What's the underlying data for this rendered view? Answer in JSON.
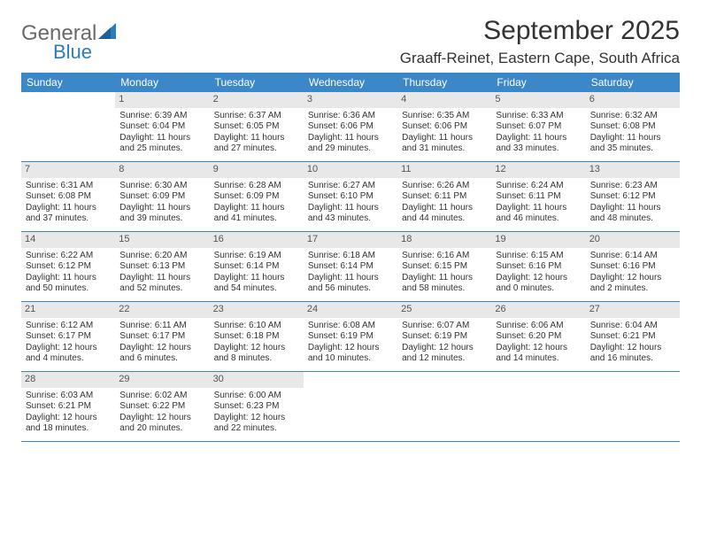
{
  "brand": {
    "word1": "General",
    "word2": "Blue",
    "text_color": "#6a6a6a",
    "accent_color": "#2b7bbf"
  },
  "header": {
    "title": "September 2025",
    "location": "Graaff-Reinet, Eastern Cape, South Africa"
  },
  "theme": {
    "header_row_bg": "#3b87c8",
    "header_row_text": "#ffffff",
    "daynum_bg": "#e8e8e8",
    "daynum_text": "#555555",
    "divider_color": "#3b87c8",
    "body_text": "#333333"
  },
  "day_headers": [
    "Sunday",
    "Monday",
    "Tuesday",
    "Wednesday",
    "Thursday",
    "Friday",
    "Saturday"
  ],
  "weeks": [
    [
      {
        "n": "",
        "sunrise": "",
        "sunset": "",
        "day1": "",
        "day2": ""
      },
      {
        "n": "1",
        "sunrise": "Sunrise: 6:39 AM",
        "sunset": "Sunset: 6:04 PM",
        "day1": "Daylight: 11 hours",
        "day2": "and 25 minutes."
      },
      {
        "n": "2",
        "sunrise": "Sunrise: 6:37 AM",
        "sunset": "Sunset: 6:05 PM",
        "day1": "Daylight: 11 hours",
        "day2": "and 27 minutes."
      },
      {
        "n": "3",
        "sunrise": "Sunrise: 6:36 AM",
        "sunset": "Sunset: 6:06 PM",
        "day1": "Daylight: 11 hours",
        "day2": "and 29 minutes."
      },
      {
        "n": "4",
        "sunrise": "Sunrise: 6:35 AM",
        "sunset": "Sunset: 6:06 PM",
        "day1": "Daylight: 11 hours",
        "day2": "and 31 minutes."
      },
      {
        "n": "5",
        "sunrise": "Sunrise: 6:33 AM",
        "sunset": "Sunset: 6:07 PM",
        "day1": "Daylight: 11 hours",
        "day2": "and 33 minutes."
      },
      {
        "n": "6",
        "sunrise": "Sunrise: 6:32 AM",
        "sunset": "Sunset: 6:08 PM",
        "day1": "Daylight: 11 hours",
        "day2": "and 35 minutes."
      }
    ],
    [
      {
        "n": "7",
        "sunrise": "Sunrise: 6:31 AM",
        "sunset": "Sunset: 6:08 PM",
        "day1": "Daylight: 11 hours",
        "day2": "and 37 minutes."
      },
      {
        "n": "8",
        "sunrise": "Sunrise: 6:30 AM",
        "sunset": "Sunset: 6:09 PM",
        "day1": "Daylight: 11 hours",
        "day2": "and 39 minutes."
      },
      {
        "n": "9",
        "sunrise": "Sunrise: 6:28 AM",
        "sunset": "Sunset: 6:09 PM",
        "day1": "Daylight: 11 hours",
        "day2": "and 41 minutes."
      },
      {
        "n": "10",
        "sunrise": "Sunrise: 6:27 AM",
        "sunset": "Sunset: 6:10 PM",
        "day1": "Daylight: 11 hours",
        "day2": "and 43 minutes."
      },
      {
        "n": "11",
        "sunrise": "Sunrise: 6:26 AM",
        "sunset": "Sunset: 6:11 PM",
        "day1": "Daylight: 11 hours",
        "day2": "and 44 minutes."
      },
      {
        "n": "12",
        "sunrise": "Sunrise: 6:24 AM",
        "sunset": "Sunset: 6:11 PM",
        "day1": "Daylight: 11 hours",
        "day2": "and 46 minutes."
      },
      {
        "n": "13",
        "sunrise": "Sunrise: 6:23 AM",
        "sunset": "Sunset: 6:12 PM",
        "day1": "Daylight: 11 hours",
        "day2": "and 48 minutes."
      }
    ],
    [
      {
        "n": "14",
        "sunrise": "Sunrise: 6:22 AM",
        "sunset": "Sunset: 6:12 PM",
        "day1": "Daylight: 11 hours",
        "day2": "and 50 minutes."
      },
      {
        "n": "15",
        "sunrise": "Sunrise: 6:20 AM",
        "sunset": "Sunset: 6:13 PM",
        "day1": "Daylight: 11 hours",
        "day2": "and 52 minutes."
      },
      {
        "n": "16",
        "sunrise": "Sunrise: 6:19 AM",
        "sunset": "Sunset: 6:14 PM",
        "day1": "Daylight: 11 hours",
        "day2": "and 54 minutes."
      },
      {
        "n": "17",
        "sunrise": "Sunrise: 6:18 AM",
        "sunset": "Sunset: 6:14 PM",
        "day1": "Daylight: 11 hours",
        "day2": "and 56 minutes."
      },
      {
        "n": "18",
        "sunrise": "Sunrise: 6:16 AM",
        "sunset": "Sunset: 6:15 PM",
        "day1": "Daylight: 11 hours",
        "day2": "and 58 minutes."
      },
      {
        "n": "19",
        "sunrise": "Sunrise: 6:15 AM",
        "sunset": "Sunset: 6:16 PM",
        "day1": "Daylight: 12 hours",
        "day2": "and 0 minutes."
      },
      {
        "n": "20",
        "sunrise": "Sunrise: 6:14 AM",
        "sunset": "Sunset: 6:16 PM",
        "day1": "Daylight: 12 hours",
        "day2": "and 2 minutes."
      }
    ],
    [
      {
        "n": "21",
        "sunrise": "Sunrise: 6:12 AM",
        "sunset": "Sunset: 6:17 PM",
        "day1": "Daylight: 12 hours",
        "day2": "and 4 minutes."
      },
      {
        "n": "22",
        "sunrise": "Sunrise: 6:11 AM",
        "sunset": "Sunset: 6:17 PM",
        "day1": "Daylight: 12 hours",
        "day2": "and 6 minutes."
      },
      {
        "n": "23",
        "sunrise": "Sunrise: 6:10 AM",
        "sunset": "Sunset: 6:18 PM",
        "day1": "Daylight: 12 hours",
        "day2": "and 8 minutes."
      },
      {
        "n": "24",
        "sunrise": "Sunrise: 6:08 AM",
        "sunset": "Sunset: 6:19 PM",
        "day1": "Daylight: 12 hours",
        "day2": "and 10 minutes."
      },
      {
        "n": "25",
        "sunrise": "Sunrise: 6:07 AM",
        "sunset": "Sunset: 6:19 PM",
        "day1": "Daylight: 12 hours",
        "day2": "and 12 minutes."
      },
      {
        "n": "26",
        "sunrise": "Sunrise: 6:06 AM",
        "sunset": "Sunset: 6:20 PM",
        "day1": "Daylight: 12 hours",
        "day2": "and 14 minutes."
      },
      {
        "n": "27",
        "sunrise": "Sunrise: 6:04 AM",
        "sunset": "Sunset: 6:21 PM",
        "day1": "Daylight: 12 hours",
        "day2": "and 16 minutes."
      }
    ],
    [
      {
        "n": "28",
        "sunrise": "Sunrise: 6:03 AM",
        "sunset": "Sunset: 6:21 PM",
        "day1": "Daylight: 12 hours",
        "day2": "and 18 minutes."
      },
      {
        "n": "29",
        "sunrise": "Sunrise: 6:02 AM",
        "sunset": "Sunset: 6:22 PM",
        "day1": "Daylight: 12 hours",
        "day2": "and 20 minutes."
      },
      {
        "n": "30",
        "sunrise": "Sunrise: 6:00 AM",
        "sunset": "Sunset: 6:23 PM",
        "day1": "Daylight: 12 hours",
        "day2": "and 22 minutes."
      },
      {
        "n": "",
        "sunrise": "",
        "sunset": "",
        "day1": "",
        "day2": ""
      },
      {
        "n": "",
        "sunrise": "",
        "sunset": "",
        "day1": "",
        "day2": ""
      },
      {
        "n": "",
        "sunrise": "",
        "sunset": "",
        "day1": "",
        "day2": ""
      },
      {
        "n": "",
        "sunrise": "",
        "sunset": "",
        "day1": "",
        "day2": ""
      }
    ]
  ]
}
